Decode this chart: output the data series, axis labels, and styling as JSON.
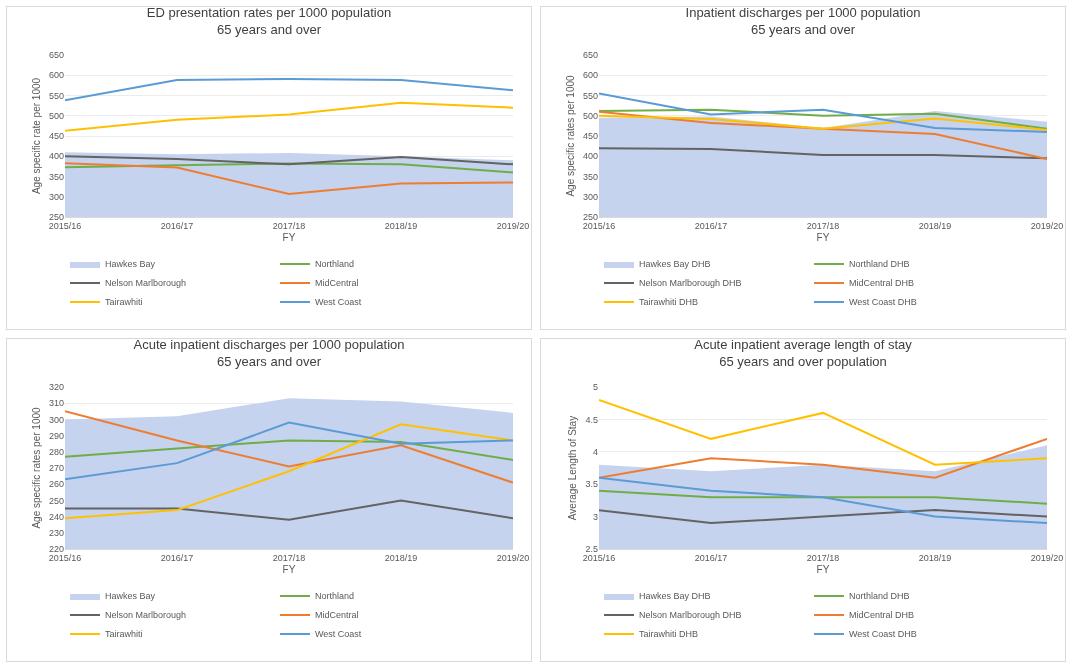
{
  "chart_data": [
    {
      "type": "line",
      "title": "ED presentation rates per 1000 population\n65 years and over",
      "xlabel": "FY",
      "ylabel": "Age specific rate per 1000",
      "categories": [
        "2015/16",
        "2016/17",
        "2017/18",
        "2018/19",
        "2019/20"
      ],
      "ylim": [
        250,
        650
      ],
      "yticks": [
        250,
        300,
        350,
        400,
        450,
        500,
        550,
        600,
        650
      ],
      "grid": "y",
      "legend": "bottom",
      "series": [
        {
          "name": "Hawkes Bay",
          "type": "area",
          "color": "#c5d3ee",
          "values": [
            410,
            405,
            408,
            400,
            390
          ]
        },
        {
          "name": "Northland",
          "color": "#70ad47",
          "values": [
            373,
            378,
            382,
            380,
            360
          ]
        },
        {
          "name": "Nelson Marlborough",
          "color": "#636363",
          "values": [
            400,
            393,
            380,
            398,
            380
          ]
        },
        {
          "name": "MidCentral",
          "color": "#ed7d31",
          "values": [
            383,
            372,
            307,
            333,
            335
          ]
        },
        {
          "name": "Tairawhiti",
          "color": "#ffc000",
          "values": [
            463,
            490,
            503,
            532,
            520
          ]
        },
        {
          "name": "West Coast",
          "color": "#5b9bd5",
          "values": [
            538,
            588,
            591,
            588,
            563
          ]
        }
      ]
    },
    {
      "type": "line",
      "title": "Inpatient discharges per 1000 population\n65 years and over",
      "xlabel": "FY",
      "ylabel": "Age specific rates per 1000",
      "categories": [
        "2015/16",
        "2016/17",
        "2017/18",
        "2018/19",
        "2019/20"
      ],
      "ylim": [
        250,
        650
      ],
      "yticks": [
        250,
        300,
        350,
        400,
        450,
        500,
        550,
        600,
        650
      ],
      "grid": "y",
      "legend": "bottom",
      "series": [
        {
          "name": "Hawkes Bay DHB",
          "type": "area",
          "color": "#c5d3ee",
          "values": [
            495,
            498,
            470,
            512,
            485
          ]
        },
        {
          "name": "Northland DHB",
          "color": "#70ad47",
          "values": [
            512,
            515,
            500,
            505,
            468
          ]
        },
        {
          "name": "Nelson Marlborough DHB",
          "color": "#636363",
          "values": [
            420,
            418,
            403,
            403,
            395
          ]
        },
        {
          "name": "MidCentral DHB",
          "color": "#ed7d31",
          "values": [
            510,
            482,
            468,
            455,
            393
          ]
        },
        {
          "name": "Tairawhiti DHB",
          "color": "#ffc000",
          "values": [
            500,
            492,
            468,
            493,
            465
          ]
        },
        {
          "name": "West Coast DHB",
          "color": "#5b9bd5",
          "values": [
            555,
            503,
            515,
            470,
            460
          ]
        }
      ]
    },
    {
      "type": "line",
      "title": "Acute inpatient discharges per 1000 population\n65 years and over",
      "xlabel": "FY",
      "ylabel": "Age specific rates per 1000",
      "categories": [
        "2015/16",
        "2016/17",
        "2017/18",
        "2018/19",
        "2019/20"
      ],
      "ylim": [
        220,
        320
      ],
      "yticks": [
        220,
        230,
        240,
        250,
        260,
        270,
        280,
        290,
        300,
        310,
        320
      ],
      "grid": "y",
      "legend": "bottom",
      "series": [
        {
          "name": "Hawkes Bay",
          "type": "area",
          "color": "#c5d3ee",
          "values": [
            300,
            302,
            313,
            311,
            304
          ]
        },
        {
          "name": "Northland",
          "color": "#70ad47",
          "values": [
            277,
            282,
            287,
            286,
            275
          ]
        },
        {
          "name": "Nelson Marlborough",
          "color": "#636363",
          "values": [
            245,
            245,
            238,
            250,
            239
          ]
        },
        {
          "name": "MidCentral",
          "color": "#ed7d31",
          "values": [
            305,
            287,
            271,
            284,
            261
          ]
        },
        {
          "name": "Tairawhiti",
          "color": "#ffc000",
          "values": [
            239,
            244,
            268,
            297,
            287
          ]
        },
        {
          "name": "West Coast",
          "color": "#5b9bd5",
          "values": [
            263,
            273,
            298,
            285,
            287
          ]
        }
      ]
    },
    {
      "type": "line",
      "title": "Acute inpatient average length of stay\n65 years and over population",
      "xlabel": "FY",
      "ylabel": "Average Length of Stay",
      "categories": [
        "2015/16",
        "2016/17",
        "2017/18",
        "2018/19",
        "2019/20"
      ],
      "ylim": [
        2.5,
        5
      ],
      "yticks": [
        2.5,
        3,
        3.5,
        4,
        4.5,
        5
      ],
      "grid": "y",
      "legend": "bottom",
      "series": [
        {
          "name": "Hawkes Bay DHB",
          "type": "area",
          "color": "#c5d3ee",
          "values": [
            3.8,
            3.7,
            3.8,
            3.7,
            4.1
          ]
        },
        {
          "name": "Northland DHB",
          "color": "#70ad47",
          "values": [
            3.4,
            3.3,
            3.3,
            3.3,
            3.2
          ]
        },
        {
          "name": "Nelson Marlborough DHB",
          "color": "#636363",
          "values": [
            3.1,
            2.9,
            3.0,
            3.1,
            3.0
          ]
        },
        {
          "name": "MidCentral DHB",
          "color": "#ed7d31",
          "values": [
            3.6,
            3.9,
            3.8,
            3.6,
            4.2
          ]
        },
        {
          "name": "Tairawhiti DHB",
          "color": "#ffc000",
          "values": [
            4.8,
            4.2,
            4.6,
            3.8,
            3.9
          ]
        },
        {
          "name": "West Coast DHB",
          "color": "#5b9bd5",
          "values": [
            3.6,
            3.4,
            3.3,
            3.0,
            2.9
          ]
        }
      ]
    }
  ]
}
